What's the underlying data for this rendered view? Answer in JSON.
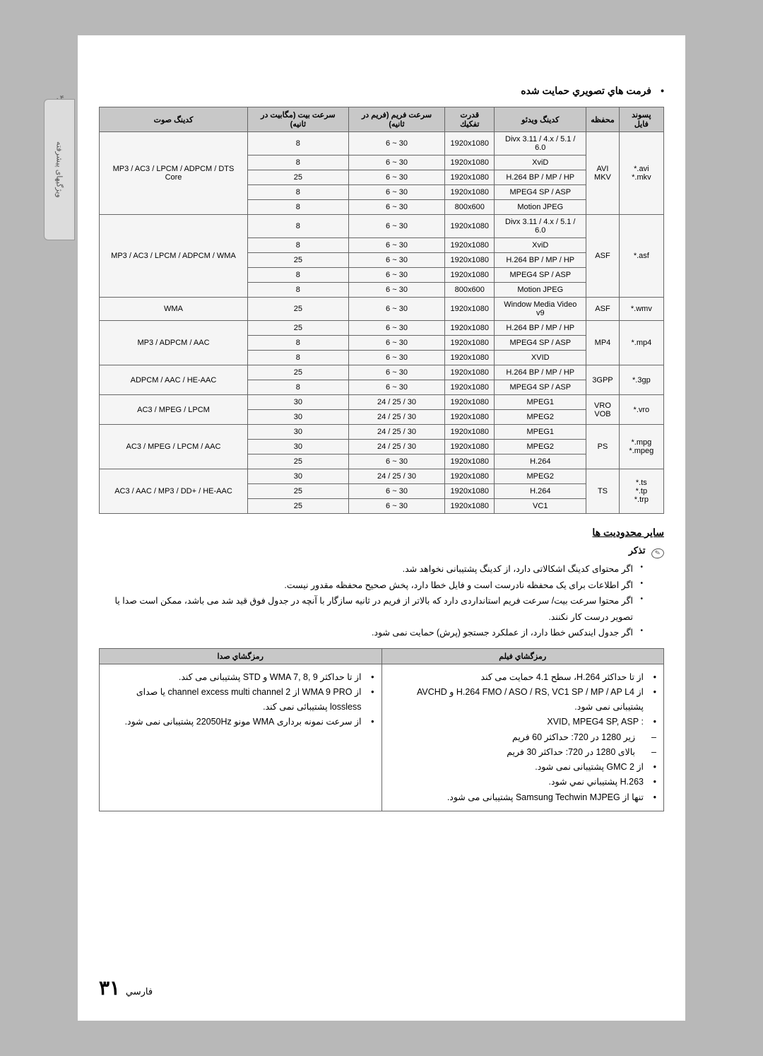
{
  "sidebar": {
    "num": "۰۴",
    "label": "ویژگیهای پیشرفته"
  },
  "sectionTitle": "فرمت هاي تصویري حمایت شده",
  "table": {
    "headers": {
      "ext": "پسوند فایل",
      "container": "محفظه",
      "videoCodec": "کدینگ ویدئو",
      "resolution": "قدرت تفکیك",
      "frameRate": "سرعت فریم (فریم در ثانیه)",
      "bitRate": "سرعت بیت (مگابیت در ثانیه)",
      "audioCodec": "کدینگ صوت"
    },
    "groups": [
      {
        "ext": "*.avi\n*.mkv",
        "container": "AVI\nMKV",
        "audio": "MP3 / AC3 / LPCM / ADPCM / DTS Core",
        "rows": [
          {
            "v": "Divx 3.11 / 4.x / 5.1 / 6.0",
            "r": "1920x1080",
            "f": "6 ~ 30",
            "b": "8"
          },
          {
            "v": "XviD",
            "r": "1920x1080",
            "f": "6 ~ 30",
            "b": "8"
          },
          {
            "v": "H.264 BP / MP / HP",
            "r": "1920x1080",
            "f": "6 ~ 30",
            "b": "25"
          },
          {
            "v": "MPEG4 SP / ASP",
            "r": "1920x1080",
            "f": "6 ~ 30",
            "b": "8"
          },
          {
            "v": "Motion JPEG",
            "r": "800x600",
            "f": "6 ~ 30",
            "b": "8"
          }
        ]
      },
      {
        "ext": "*.asf",
        "container": "ASF",
        "audio": "MP3 / AC3 / LPCM / ADPCM / WMA",
        "rows": [
          {
            "v": "Divx 3.11 / 4.x / 5.1 / 6.0",
            "r": "1920x1080",
            "f": "6 ~ 30",
            "b": "8"
          },
          {
            "v": "XviD",
            "r": "1920x1080",
            "f": "6 ~ 30",
            "b": "8"
          },
          {
            "v": "H.264 BP / MP / HP",
            "r": "1920x1080",
            "f": "6 ~ 30",
            "b": "25"
          },
          {
            "v": "MPEG4 SP / ASP",
            "r": "1920x1080",
            "f": "6 ~ 30",
            "b": "8"
          },
          {
            "v": "Motion JPEG",
            "r": "800x600",
            "f": "6 ~ 30",
            "b": "8"
          }
        ]
      },
      {
        "ext": "*.wmv",
        "container": "ASF",
        "audio": "WMA",
        "rows": [
          {
            "v": "Window Media Video v9",
            "r": "1920x1080",
            "f": "6 ~ 30",
            "b": "25"
          }
        ]
      },
      {
        "ext": "*.mp4",
        "container": "MP4",
        "audio": "MP3 / ADPCM / AAC",
        "rows": [
          {
            "v": "H.264 BP / MP / HP",
            "r": "1920x1080",
            "f": "6 ~ 30",
            "b": "25"
          },
          {
            "v": "MPEG4 SP / ASP",
            "r": "1920x1080",
            "f": "6 ~ 30",
            "b": "8"
          },
          {
            "v": "XVID",
            "r": "1920x1080",
            "f": "6 ~ 30",
            "b": "8"
          }
        ]
      },
      {
        "ext": "*.3gp",
        "container": "3GPP",
        "audio": "ADPCM / AAC / HE-AAC",
        "rows": [
          {
            "v": "H.264 BP / MP / HP",
            "r": "1920x1080",
            "f": "6 ~ 30",
            "b": "25"
          },
          {
            "v": "MPEG4 SP / ASP",
            "r": "1920x1080",
            "f": "6 ~ 30",
            "b": "8"
          }
        ]
      },
      {
        "ext": "*.vro",
        "container": "VRO\nVOB",
        "audio": "AC3 / MPEG / LPCM",
        "rows": [
          {
            "v": "MPEG1",
            "r": "1920x1080",
            "f": "24 / 25 / 30",
            "b": "30"
          },
          {
            "v": "MPEG2",
            "r": "1920x1080",
            "f": "24 / 25 / 30",
            "b": "30"
          }
        ]
      },
      {
        "ext": "*.mpg\n*.mpeg",
        "container": "PS",
        "audio": "AC3 / MPEG / LPCM / AAC",
        "rows": [
          {
            "v": "MPEG1",
            "r": "1920x1080",
            "f": "24 / 25 / 30",
            "b": "30"
          },
          {
            "v": "MPEG2",
            "r": "1920x1080",
            "f": "24 / 25 / 30",
            "b": "30"
          },
          {
            "v": "H.264",
            "r": "1920x1080",
            "f": "6 ~ 30",
            "b": "25"
          }
        ]
      },
      {
        "ext": "*.ts\n*.tp\n*.trp",
        "container": "TS",
        "audio": "AC3 / AAC / MP3 / DD+ / HE-AAC",
        "rows": [
          {
            "v": "MPEG2",
            "r": "1920x1080",
            "f": "24 / 25 / 30",
            "b": "30"
          },
          {
            "v": "H.264",
            "r": "1920x1080",
            "f": "6 ~ 30",
            "b": "25"
          },
          {
            "v": "VC1",
            "r": "1920x1080",
            "f": "6 ~ 30",
            "b": "25"
          }
        ]
      }
    ]
  },
  "otherLimits": {
    "heading": "سایر محدودیت ها",
    "noteLabel": "تذکر",
    "items": [
      "اگر محتوای کدینگ اشکالاتی دارد، از کدینگ پشتیبانی نخواهد شد.",
      "اگر اطلاعات برای یک محفظه نادرست است و فایل خطا دارد، پخش صحیح محفظه مقدور نیست.",
      "اگر محتوا سرعت بیت/ سرعت فریم استانداردی دارد که بالاتر از فریم در ثانیه سازگار با آنچه در جدول فوق قید شد می باشد، ممکن است صدا یا تصویر درست کار نکنند.",
      "اگر جدول ایندکس خطا دارد، از عملکرد جستجو (پرش) حمایت نمی شود."
    ]
  },
  "decoderTable": {
    "colVideo": "رمزگشاي فیلم",
    "colAudio": "رمزگشاي صدا",
    "video": [
      {
        "text": "از تا حداکثر H.264، سطح 4.1 حمایت می کند"
      },
      {
        "text": "از H.264 FMO / ASO / RS, VC1 SP / MP / AP L4 و AVCHD پشتیبانی نمی شود."
      },
      {
        "text": ": XVID, MPEG4 SP, ASP"
      },
      {
        "text": "زیر 1280 در 720: حداکثر 60 فریم",
        "sub": true
      },
      {
        "text": "بالای 1280 در 720: حداکثر 30 فریم",
        "sub": true
      },
      {
        "text": "از GMC 2 پشتیبانی نمی شود."
      },
      {
        "text": "H.263 پشتیباني نمي شود."
      },
      {
        "text": "تنها از Samsung Techwin MJPEG پشتیبانی می شود."
      }
    ],
    "audio": [
      {
        "text": "از تا حداکثر WMA  7, 8, 9 و STD پشتیبانی می کند."
      },
      {
        "text": "از WMA 9 PRO از channel excess multi channel 2 یا صدای lossless پشتیبائی نمی کند."
      },
      {
        "text": "از سرعت نمونه برداری WMA مونو 22050Hz پشتیبانی نمی شود."
      }
    ]
  },
  "pageNum": "۳۱",
  "pageLang": "فارسي"
}
